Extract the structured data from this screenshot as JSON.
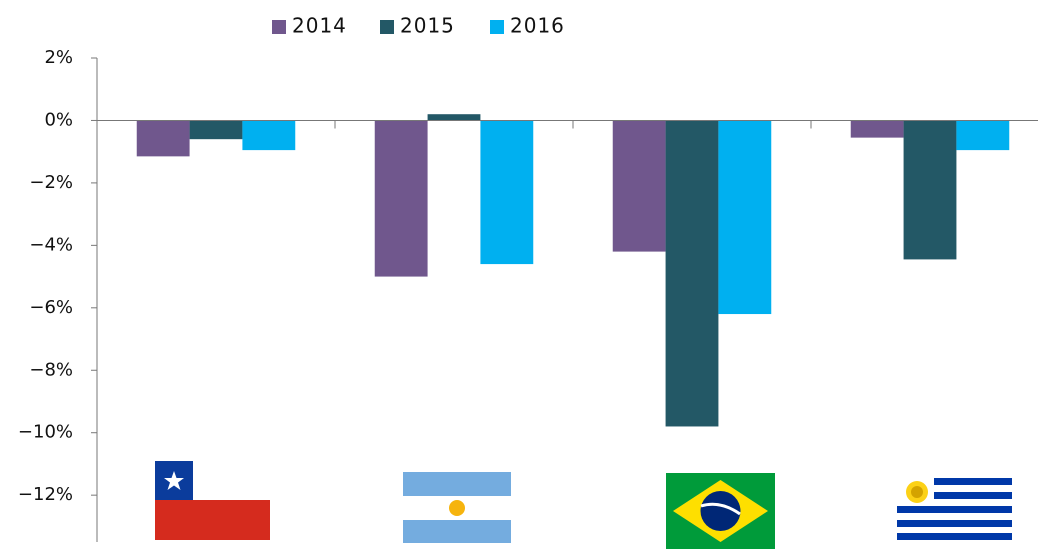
{
  "chart_data": {
    "type": "bar",
    "categories": [
      null,
      null,
      null,
      null
    ],
    "series": [
      {
        "name": "2014",
        "color": "#70578d",
        "values": [
          -1.15,
          -5.0,
          -4.2,
          -0.55
        ]
      },
      {
        "name": "2015",
        "color": "#235866",
        "values": [
          -0.6,
          0.2,
          -9.8,
          -4.45
        ]
      },
      {
        "name": "2016",
        "color": "#00b0f0",
        "values": [
          -0.95,
          -4.6,
          -6.2,
          -0.95
        ]
      }
    ],
    "ylim": [
      -13.5,
      2
    ],
    "yticks": [
      {
        "value": 2,
        "label": "2%"
      },
      {
        "value": 0,
        "label": "0%"
      },
      {
        "value": -2,
        "label": "−2%"
      },
      {
        "value": -4,
        "label": "−4%"
      },
      {
        "value": -6,
        "label": "−6%"
      },
      {
        "value": -8,
        "label": "−8%"
      },
      {
        "value": -10,
        "label": "−10%"
      },
      {
        "value": -12,
        "label": "−12%"
      }
    ],
    "legend": "top"
  }
}
